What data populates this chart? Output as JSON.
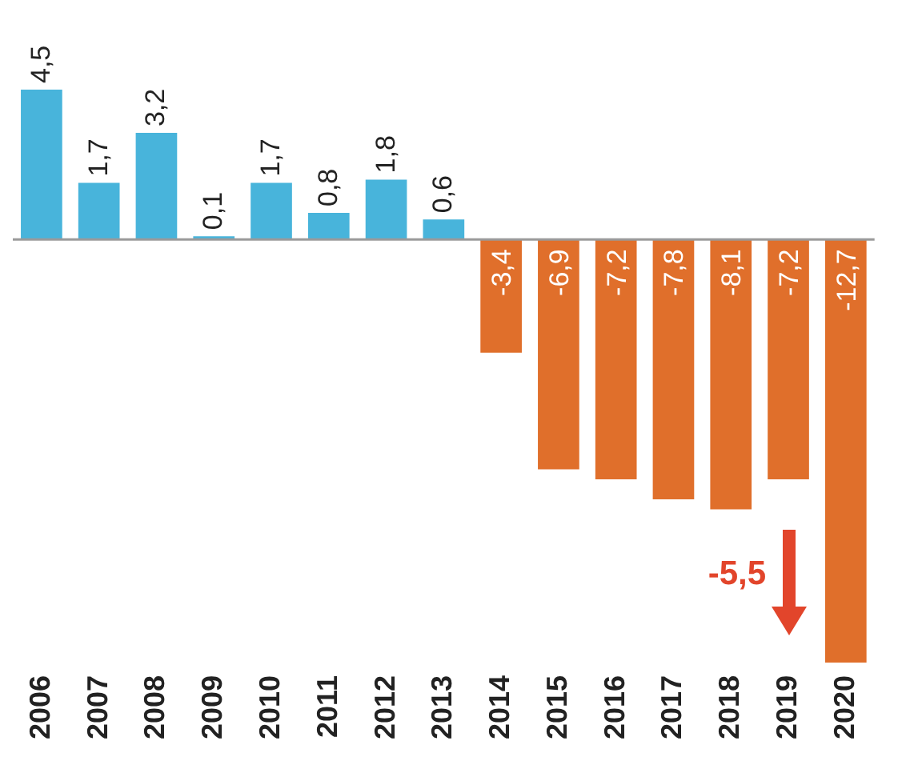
{
  "chart_data": {
    "type": "bar",
    "categories": [
      "2006",
      "2007",
      "2008",
      "2009",
      "2010",
      "2011",
      "2012",
      "2013",
      "2014",
      "2015",
      "2016",
      "2017",
      "2018",
      "2019",
      "2020"
    ],
    "values": [
      4.5,
      1.7,
      3.2,
      0.1,
      1.7,
      0.8,
      1.8,
      0.6,
      -3.4,
      -6.9,
      -7.2,
      -7.8,
      -8.1,
      -7.2,
      -12.7
    ],
    "colors": [
      "#48b4db",
      "#48b4db",
      "#48b4db",
      "#48b4db",
      "#48b4db",
      "#48b4db",
      "#48b4db",
      "#48b4db",
      "#e06f2b",
      "#e06f2b",
      "#e06f2b",
      "#e06f2b",
      "#e06f2b",
      "#e06f2b",
      "#e06f2b"
    ],
    "value_labels": [
      "4,5",
      "1,7",
      "3,2",
      "0,1",
      "1,7",
      "0,8",
      "1,8",
      "0,6",
      "-3,4",
      "-6,9",
      "-7,2",
      "-7,8",
      "-8,1",
      "-7,2",
      "-12,7"
    ],
    "annotations": [
      "-5,5"
    ],
    "tick_labels": "x",
    "legend": false,
    "grid": false
  }
}
